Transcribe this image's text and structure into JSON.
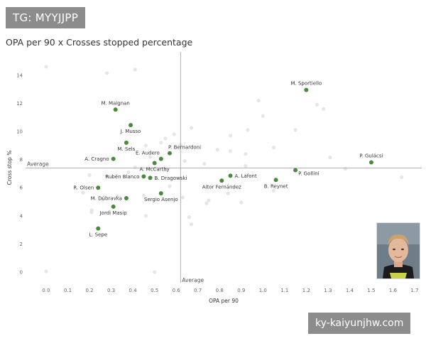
{
  "watermark_top": "TG: MYYJJPP",
  "watermark_bottom": "ky-kaiyunjhw.com",
  "colors": {
    "point": "#4a8a3c",
    "background_point": "#e6e6e6",
    "axis_line": "#999999",
    "text": "#333333"
  },
  "chart_data": {
    "type": "scatter",
    "title": "OPA per 90 x Crosses stopped percentage",
    "xlabel": "OPA per 90",
    "ylabel": "Cross stop %",
    "xlim": [
      0.0,
      1.7
    ],
    "ylim": [
      0,
      15
    ],
    "x_ticks": [
      "0.0",
      "0.1",
      "0.2",
      "0.3",
      "0.4",
      "0.5",
      "0.6",
      "0.7",
      "0.8",
      "0.9",
      "1.0",
      "1.1",
      "1.2",
      "1.3",
      "1.4",
      "1.5",
      "1.6",
      "1.7"
    ],
    "y_ticks": [
      "0",
      "2",
      "4",
      "6",
      "8",
      "10",
      "12",
      "14"
    ],
    "average_x": 0.62,
    "average_y": 7.4,
    "average_x_label": "Average",
    "average_y_label": "Average",
    "grid": false,
    "labeled_points": [
      {
        "label": "M. Sportiello",
        "x": 1.2,
        "y": 12.95,
        "label_pos": "above"
      },
      {
        "label": "M. Maignan",
        "x": 0.32,
        "y": 11.55,
        "label_pos": "above"
      },
      {
        "label": "J. Musso",
        "x": 0.39,
        "y": 10.45,
        "label_pos": "below"
      },
      {
        "label": "P. Bernardoni",
        "x": 0.57,
        "y": 8.45,
        "label_pos": "above-right"
      },
      {
        "label": "M. Sels",
        "x": 0.37,
        "y": 9.2,
        "label_pos": "below"
      },
      {
        "label": "E. Audero",
        "x": 0.53,
        "y": 8.05,
        "label_pos": "above-left"
      },
      {
        "label": "A. Cragno",
        "x": 0.31,
        "y": 8.05,
        "label_pos": "left"
      },
      {
        "label": "A. McCarthy",
        "x": 0.5,
        "y": 7.75,
        "label_pos": "below"
      },
      {
        "label": "P. Gulácsi",
        "x": 1.5,
        "y": 7.8,
        "label_pos": "above"
      },
      {
        "label": "P. Gollini",
        "x": 1.15,
        "y": 7.25,
        "label_pos": "right-below"
      },
      {
        "label": "A. Lafont",
        "x": 0.85,
        "y": 6.85,
        "label_pos": "right"
      },
      {
        "label": "Rubén Blanco",
        "x": 0.45,
        "y": 6.8,
        "label_pos": "left"
      },
      {
        "label": "B. Dragowski",
        "x": 0.48,
        "y": 6.7,
        "label_pos": "right"
      },
      {
        "label": "Aitor Fernández",
        "x": 0.81,
        "y": 6.5,
        "label_pos": "below"
      },
      {
        "label": "B. Reynet",
        "x": 1.06,
        "y": 6.55,
        "label_pos": "below"
      },
      {
        "label": "R. Olsen",
        "x": 0.24,
        "y": 6.0,
        "label_pos": "left"
      },
      {
        "label": "Sergio Asenjo",
        "x": 0.53,
        "y": 5.6,
        "label_pos": "below"
      },
      {
        "label": "M. Dúbravka",
        "x": 0.37,
        "y": 5.25,
        "label_pos": "left"
      },
      {
        "label": "Jordi Masip",
        "x": 0.31,
        "y": 4.65,
        "label_pos": "below"
      },
      {
        "label": "L. Sepe",
        "x": 0.24,
        "y": 3.1,
        "label_pos": "below"
      }
    ],
    "background_points": [
      {
        "x": 0.0,
        "y": 14.6
      },
      {
        "x": 0.28,
        "y": 14.15
      },
      {
        "x": 0.41,
        "y": 14.4
      },
      {
        "x": 0.0,
        "y": 0.05
      },
      {
        "x": 0.5,
        "y": 0.0
      },
      {
        "x": 0.98,
        "y": 12.2
      },
      {
        "x": 1.25,
        "y": 11.9
      },
      {
        "x": 1.28,
        "y": 11.6
      },
      {
        "x": 1.0,
        "y": 11.1
      },
      {
        "x": 0.85,
        "y": 9.7
      },
      {
        "x": 0.93,
        "y": 10.1
      },
      {
        "x": 1.15,
        "y": 10.1
      },
      {
        "x": 0.67,
        "y": 10.25
      },
      {
        "x": 0.55,
        "y": 9.5
      },
      {
        "x": 0.59,
        "y": 9.8
      },
      {
        "x": 0.46,
        "y": 9.0
      },
      {
        "x": 0.53,
        "y": 9.2
      },
      {
        "x": 0.62,
        "y": 9.05
      },
      {
        "x": 0.79,
        "y": 8.7
      },
      {
        "x": 0.85,
        "y": 8.6
      },
      {
        "x": 0.92,
        "y": 8.4
      },
      {
        "x": 1.05,
        "y": 8.85
      },
      {
        "x": 1.31,
        "y": 8.15
      },
      {
        "x": 0.48,
        "y": 8.2
      },
      {
        "x": 0.64,
        "y": 7.9
      },
      {
        "x": 0.73,
        "y": 7.7
      },
      {
        "x": 0.92,
        "y": 7.55
      },
      {
        "x": 1.38,
        "y": 7.35
      },
      {
        "x": 0.38,
        "y": 7.1
      },
      {
        "x": 0.41,
        "y": 7.45
      },
      {
        "x": 0.2,
        "y": 6.9
      },
      {
        "x": 0.28,
        "y": 6.8
      },
      {
        "x": 0.55,
        "y": 7.25
      },
      {
        "x": 1.64,
        "y": 6.75
      },
      {
        "x": 0.17,
        "y": 5.65
      },
      {
        "x": 0.33,
        "y": 5.4
      },
      {
        "x": 0.45,
        "y": 5.45
      },
      {
        "x": 0.57,
        "y": 6.1
      },
      {
        "x": 0.26,
        "y": 5.15
      },
      {
        "x": 0.21,
        "y": 4.4
      },
      {
        "x": 0.21,
        "y": 4.25
      },
      {
        "x": 0.46,
        "y": 4.0
      },
      {
        "x": 0.74,
        "y": 4.9
      },
      {
        "x": 0.75,
        "y": 5.1
      },
      {
        "x": 0.9,
        "y": 4.95
      },
      {
        "x": 0.84,
        "y": 5.6
      },
      {
        "x": 1.05,
        "y": 5.8
      },
      {
        "x": 0.63,
        "y": 5.3
      },
      {
        "x": 0.66,
        "y": 3.9
      },
      {
        "x": 0.67,
        "y": 3.4
      }
    ]
  }
}
